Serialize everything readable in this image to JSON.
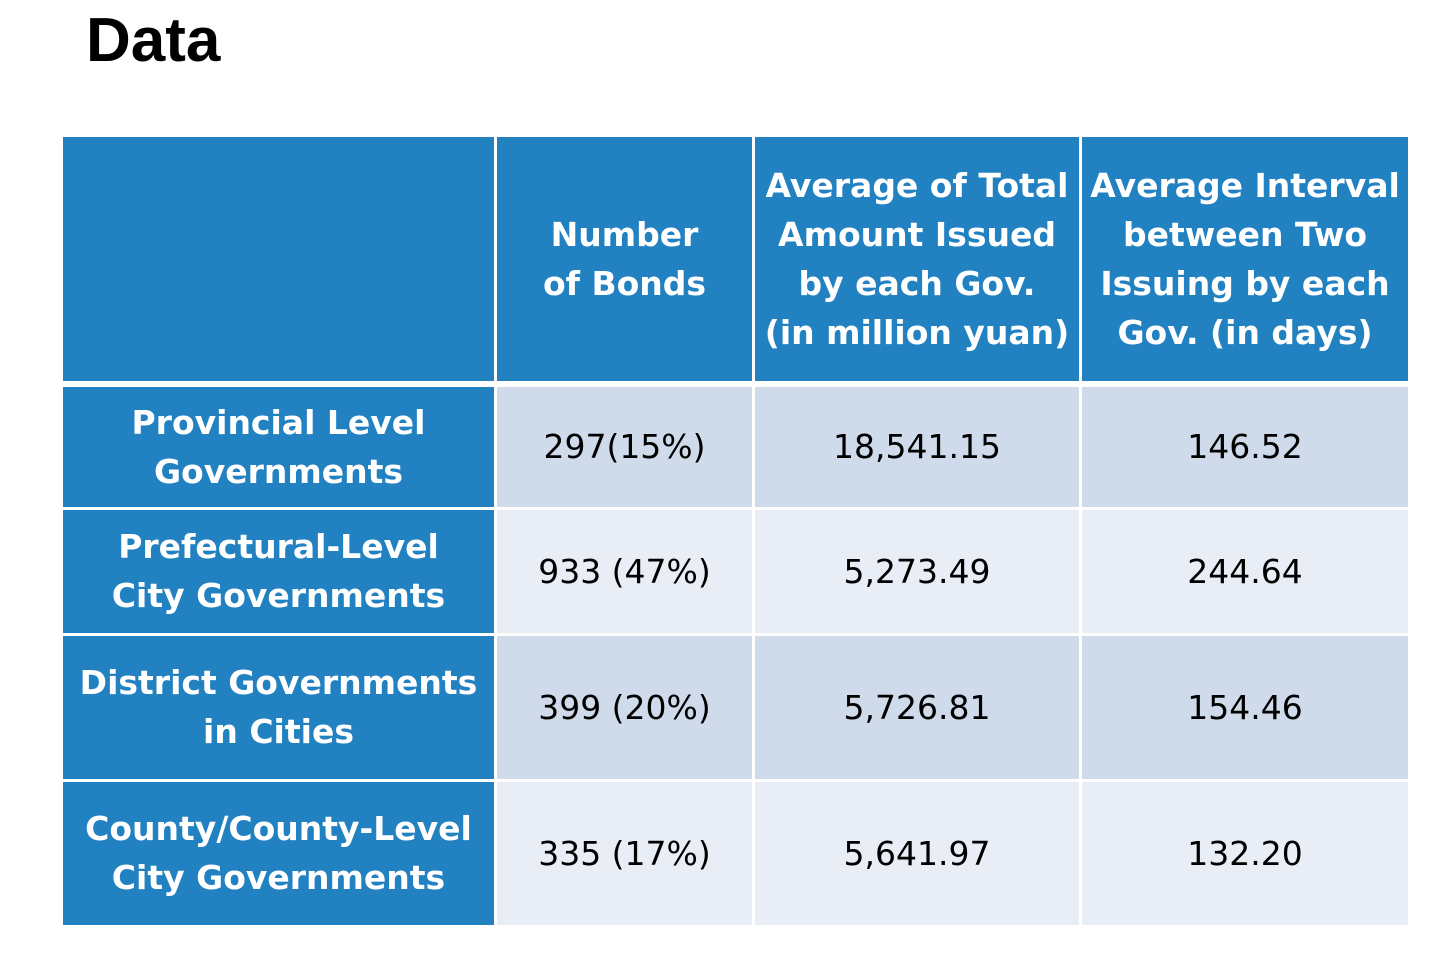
{
  "title": "Data",
  "table": {
    "headers": [
      "",
      "Number\nof Bonds",
      "Average of Total\nAmount Issued\nby each Gov.\n(in million yuan)",
      "Average Interval\nbetween Two\nIssuing by each\nGov. (in days)"
    ],
    "rows": [
      {
        "label": "Provincial Level\nGovernments",
        "bonds": "297(15%)",
        "avg_amount": "18,541.15",
        "avg_interval": "146.52"
      },
      {
        "label": "Prefectural-Level\nCity Governments",
        "bonds": "933 (47%)",
        "avg_amount": "5,273.49",
        "avg_interval": "244.64"
      },
      {
        "label": "District Governments\nin Cities",
        "bonds": "399 (20%)",
        "avg_amount": "5,726.81",
        "avg_interval": "154.46"
      },
      {
        "label": "County/County-Level\nCity Governments",
        "bonds": "335 (17%)",
        "avg_amount": "5,641.97",
        "avg_interval": "132.20"
      }
    ]
  },
  "colors": {
    "header_blue": "#2181c1",
    "row_shade_dark": "#cfdaea",
    "row_shade_light": "#e8edf6"
  }
}
